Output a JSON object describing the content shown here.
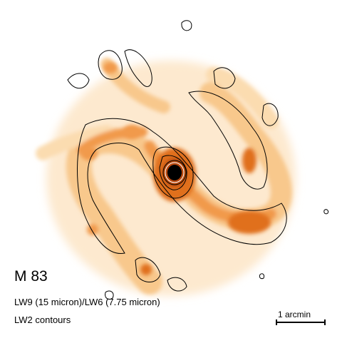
{
  "figure": {
    "object_name": "M 83",
    "line1": "LW9 (15 micron)/LW6 (7.75 micron)",
    "line2": "LW2 contours",
    "scale_label": "1 arcmin"
  },
  "colors": {
    "background": "#ffffff",
    "faint": "#fde9cf",
    "low": "#f8c88c",
    "mid": "#f19a4c",
    "high": "#e0701e",
    "peak": "#b8460e",
    "contour": "#000000"
  }
}
